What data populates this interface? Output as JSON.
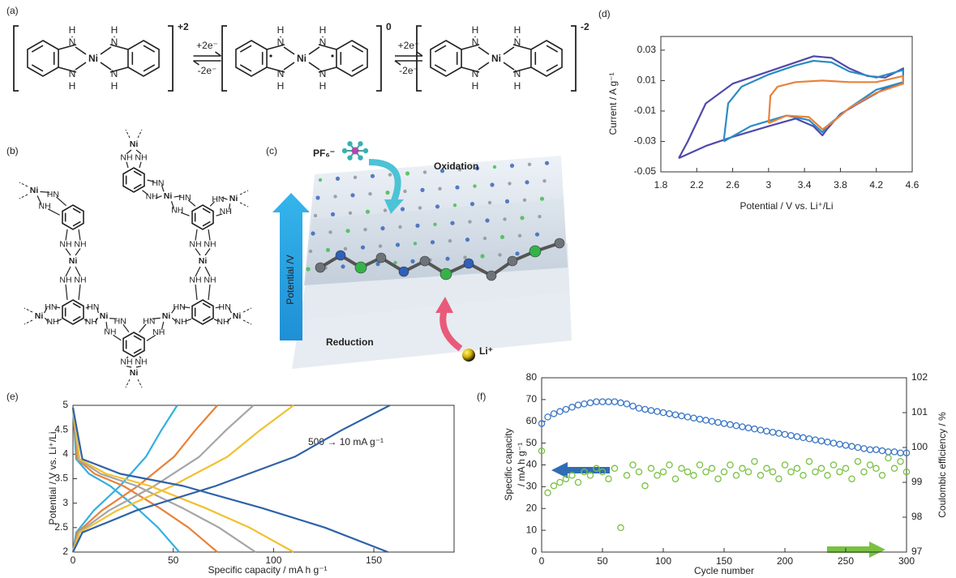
{
  "scheme_a": {
    "label": "(a)",
    "complexes": [
      {
        "charge": "+2"
      },
      {
        "charge": "0"
      },
      {
        "charge": "-2"
      }
    ],
    "atoms": {
      "h": "H",
      "n": "N",
      "ni": "Ni"
    },
    "arrows": [
      {
        "forward": "+2e⁻",
        "backward": "-2e⁻"
      },
      {
        "forward": "+2e⁻",
        "backward": "-2e⁻"
      }
    ]
  },
  "structure_b": {
    "label": "(b)",
    "atoms": {
      "ni": "Ni",
      "hn": "HN",
      "nh": "NH"
    }
  },
  "illustration_c": {
    "label": "(c)",
    "anion": "PF₆⁻",
    "oxidation": "Oxidation",
    "reduction": "Reduction",
    "axis": "Potential /V",
    "cation": "Li⁺"
  },
  "chart_data": [
    {
      "panel_label": "(d)",
      "type": "line",
      "xlabel": "Potential / V vs. Li⁺/Li",
      "ylabel": "Current / A g⁻¹",
      "xlim": [
        1.8,
        4.6
      ],
      "xticks": [
        1.8,
        2.2,
        2.6,
        3,
        3.4,
        3.8,
        4.2,
        4.6
      ],
      "ylim": [
        -0.05,
        0.039
      ],
      "yticks": [
        -0.05,
        -0.03,
        -0.01,
        0.01,
        0.03
      ],
      "series": [
        {
          "color": "#4f4aa8",
          "x": [
            2.0,
            2.1,
            2.3,
            2.6,
            3.0,
            3.3,
            3.5,
            3.7,
            3.9,
            4.1,
            4.3,
            4.5,
            4.5,
            4.3,
            4.0,
            3.8,
            3.65,
            3.6,
            3.5,
            3.3,
            3.0,
            2.6,
            2.3,
            2.0
          ],
          "values": [
            -0.041,
            -0.03,
            -0.005,
            0.008,
            0.016,
            0.022,
            0.026,
            0.025,
            0.018,
            0.013,
            0.012,
            0.018,
            0.008,
            0.005,
            -0.005,
            -0.012,
            -0.022,
            -0.026,
            -0.02,
            -0.015,
            -0.02,
            -0.027,
            -0.033,
            -0.041
          ]
        },
        {
          "color": "#2b8cc4",
          "x": [
            2.5,
            2.55,
            2.7,
            3.0,
            3.3,
            3.5,
            3.7,
            3.9,
            4.2,
            4.5,
            4.5,
            4.2,
            3.9,
            3.65,
            3.6,
            3.45,
            3.2,
            2.8,
            2.5
          ],
          "values": [
            -0.03,
            -0.005,
            0.006,
            0.014,
            0.02,
            0.023,
            0.022,
            0.016,
            0.012,
            0.017,
            0.009,
            0.004,
            -0.008,
            -0.02,
            -0.024,
            -0.016,
            -0.013,
            -0.02,
            -0.03
          ]
        },
        {
          "color": "#e8823a",
          "x": [
            3.0,
            3.02,
            3.1,
            3.3,
            3.6,
            3.9,
            4.2,
            4.5,
            4.5,
            4.2,
            3.9,
            3.7,
            3.6,
            3.45,
            3.2,
            3.0
          ],
          "values": [
            -0.018,
            0,
            0.006,
            0.009,
            0.01,
            0.009,
            0.009,
            0.013,
            0.008,
            0.002,
            -0.008,
            -0.018,
            -0.022,
            -0.014,
            -0.013,
            -0.018
          ]
        }
      ]
    },
    {
      "panel_label": "(e)",
      "type": "line",
      "xlabel": "Specific capacity / mA h g⁻¹",
      "ylabel": "Potential / V vs. Li⁺/Li",
      "annotation": "500 → 10 mA g⁻¹",
      "xlim": [
        0,
        190
      ],
      "xticks": [
        0,
        50,
        100,
        150
      ],
      "ylim": [
        2,
        5
      ],
      "yticks": [
        2,
        2.5,
        3,
        3.5,
        4,
        4.5,
        5
      ],
      "series": [
        {
          "color": "#33b0e0",
          "x": [
            0,
            1.6,
            8,
            18.6,
            31.8,
            42.4,
            53,
            null,
            0,
            1.6,
            10.4,
            23.4,
            36.4,
            44.2,
            52
          ],
          "values": [
            4.95,
            3.9,
            3.6,
            3.35,
            2.9,
            2.5,
            2,
            null,
            2,
            2.4,
            2.85,
            3.35,
            3.95,
            4.5,
            5
          ]
        },
        {
          "color": "#e8823a",
          "x": [
            0,
            2.2,
            10.8,
            25.2,
            43.2,
            57.6,
            72,
            null,
            0,
            2.2,
            14.4,
            32.4,
            50.4,
            61.2,
            72
          ],
          "values": [
            4.95,
            3.9,
            3.6,
            3.35,
            2.9,
            2.5,
            2,
            null,
            2,
            2.4,
            2.85,
            3.35,
            3.95,
            4.5,
            5
          ]
        },
        {
          "color": "#a5a5a5",
          "x": [
            0,
            2.7,
            13.7,
            31.9,
            54.6,
            72.8,
            91,
            null,
            0,
            2.7,
            18,
            40.5,
            63,
            76.5,
            90
          ],
          "values": [
            4.95,
            3.9,
            3.6,
            3.35,
            2.9,
            2.5,
            2,
            null,
            2,
            2.4,
            2.85,
            3.35,
            3.95,
            4.5,
            5
          ]
        },
        {
          "color": "#f2c02f",
          "x": [
            0,
            3.3,
            16.5,
            38.5,
            66,
            88,
            110,
            null,
            0,
            3.3,
            22,
            49.5,
            77,
            93.5,
            110
          ],
          "values": [
            4.95,
            3.9,
            3.6,
            3.35,
            2.9,
            2.5,
            2,
            null,
            2,
            2.4,
            2.85,
            3.35,
            3.95,
            4.5,
            5
          ]
        },
        {
          "color": "#2f62a8",
          "x": [
            0,
            4.7,
            23.6,
            55,
            94.2,
            125.6,
            157,
            null,
            0,
            4.7,
            31.6,
            71.1,
            110.6,
            134.3,
            158
          ],
          "values": [
            4.95,
            3.9,
            3.6,
            3.35,
            2.9,
            2.5,
            2,
            null,
            2,
            2.4,
            2.85,
            3.35,
            3.95,
            4.5,
            5
          ]
        }
      ]
    },
    {
      "panel_label": "(f)",
      "type": "scatter",
      "xlabel": "Cycle number",
      "ylabel": [
        "Specific capacity",
        "/ mA h g⁻¹"
      ],
      "y2label": "Coulombic efficiency / %",
      "xlim": [
        0,
        300
      ],
      "xticks": [
        0,
        50,
        100,
        150,
        200,
        250,
        300
      ],
      "ylim": [
        0,
        80
      ],
      "yticks": [
        0,
        10,
        20,
        30,
        40,
        50,
        60,
        70,
        80
      ],
      "y2lim": [
        97,
        102
      ],
      "y2ticks": [
        97,
        98,
        99,
        100,
        101,
        102
      ],
      "x": [
        0,
        5,
        10,
        15,
        20,
        25,
        30,
        35,
        40,
        45,
        50,
        55,
        60,
        65,
        70,
        75,
        80,
        85,
        90,
        95,
        100,
        105,
        110,
        115,
        120,
        125,
        130,
        135,
        140,
        145,
        150,
        155,
        160,
        165,
        170,
        175,
        180,
        185,
        190,
        195,
        200,
        205,
        210,
        215,
        220,
        225,
        230,
        235,
        240,
        245,
        250,
        255,
        260,
        265,
        270,
        275,
        280,
        285,
        290,
        295,
        300
      ],
      "series": [
        {
          "color": "#3d78c8",
          "values": [
            59,
            62,
            63.5,
            64.5,
            65.5,
            66.5,
            67.5,
            68,
            68.5,
            69,
            69,
            69,
            69,
            68.5,
            68,
            67,
            66,
            65.5,
            65,
            64.5,
            64,
            63.5,
            63,
            62.5,
            62,
            61.5,
            61,
            60.5,
            60,
            59.5,
            59,
            58.5,
            58,
            57.5,
            57,
            56.5,
            56,
            55.5,
            55,
            54.5,
            54,
            53.5,
            53,
            52.5,
            52,
            51.5,
            51,
            50.5,
            50,
            49.5,
            49,
            48.5,
            48,
            47.5,
            47,
            47,
            46.5,
            46,
            46,
            45.5,
            45.5
          ]
        },
        {
          "color": "#7ac142",
          "axis": "y2",
          "values": [
            99.9,
            98.7,
            98.9,
            99.0,
            99.1,
            99.2,
            99.0,
            99.3,
            99.2,
            99.4,
            99.3,
            99.1,
            99.4,
            97.7,
            99.2,
            99.5,
            99.3,
            98.9,
            99.4,
            99.2,
            99.3,
            99.5,
            99.1,
            99.4,
            99.3,
            99.2,
            99.5,
            99.3,
            99.4,
            99.1,
            99.3,
            99.5,
            99.2,
            99.4,
            99.3,
            99.6,
            99.2,
            99.4,
            99.3,
            99.1,
            99.5,
            99.3,
            99.4,
            99.2,
            99.6,
            99.3,
            99.4,
            99.2,
            99.5,
            99.3,
            99.4,
            99.1,
            99.6,
            99.3,
            99.5,
            99.4,
            99.2,
            99.7,
            99.4,
            99.6,
            99.3
          ]
        }
      ]
    }
  ]
}
